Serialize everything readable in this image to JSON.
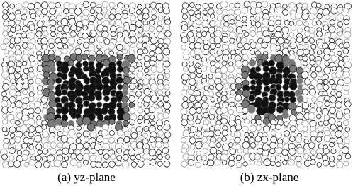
{
  "panels": [
    {
      "caption": "(a) yz-plane",
      "axis_labels": [
        "z",
        "y"
      ]
    },
    {
      "caption": "(b) zx-plane",
      "axis_labels": [
        "z",
        "x"
      ]
    }
  ]
}
